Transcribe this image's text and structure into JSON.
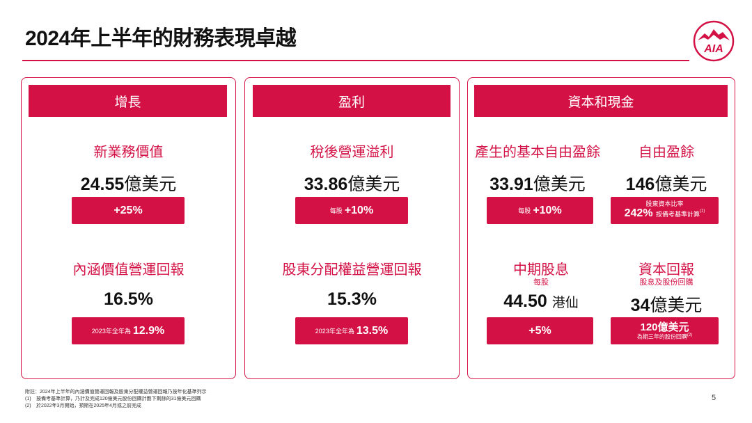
{
  "title": "2024年上半年的財務表現卓越",
  "colors": {
    "accent": "#d31145"
  },
  "logo": {
    "text": "AIA",
    "icon": "aia-logo"
  },
  "growth": {
    "header": "增長",
    "vonb_label": "新業務價值",
    "vonb_value": "24.55",
    "vonb_unit": "億美元",
    "vonb_change": "+25%",
    "ev_label": "內涵價值營運回報",
    "ev_value": "16.5%",
    "ev_compare_prefix": "2023年全年為",
    "ev_compare_value": "12.9%"
  },
  "profitability": {
    "header": "盈利",
    "opat_label": "稅後營運溢利",
    "opat_value": "33.86",
    "opat_unit": "億美元",
    "opat_prefix": "每股",
    "opat_change": "+10%",
    "roe_label": "股東分配權益營運回報",
    "roe_value": "15.3%",
    "roe_compare_prefix": "2023年全年為",
    "roe_compare_value": "13.5%"
  },
  "capital": {
    "header": "資本和現金",
    "ufg_label": "產生的基本自由盈餘",
    "ufg_value": "33.91",
    "ufg_unit": "億美元",
    "ufg_prefix": "每股",
    "ufg_change": "+10%",
    "fs_label": "自由盈餘",
    "fs_value": "146",
    "fs_unit": "億美元",
    "fs_ratio_caption": "股東資本比率",
    "fs_ratio_value": "242%",
    "fs_ratio_note": "按備考基準計算",
    "fs_ratio_ref": "(1)",
    "div_label": "中期股息",
    "div_sublabel": "每股",
    "div_value": "44.50",
    "div_unit": "港仙",
    "div_change": "+5%",
    "cr_label": "資本回報",
    "cr_sublabel": "股息及股份回購",
    "cr_value": "34",
    "cr_unit": "億美元",
    "cr_box_value": "120億美元",
    "cr_box_note": "為期三年的股份回購",
    "cr_box_ref": "(2)"
  },
  "footnotes": {
    "note": "附註：2024年上半年的內涵價值營運回報及股東分配權益營運回報乃按年化基準列示",
    "items": [
      {
        "num": "(1)",
        "text": "按備考基準計算，乃計及完成120億美元股份回購計劃下剩餘的31億美元回購"
      },
      {
        "num": "(2)",
        "text": "於2022年3月開始，預期在2025年4月或之前完成"
      }
    ]
  },
  "page_number": "5"
}
